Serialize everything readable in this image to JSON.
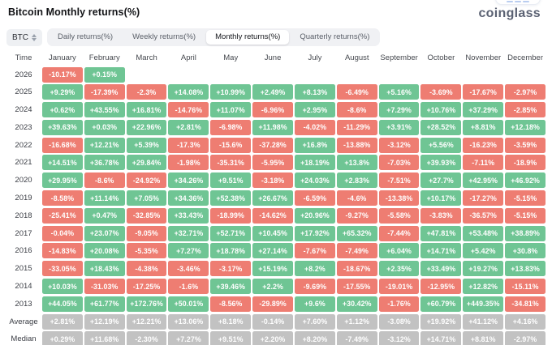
{
  "header": {
    "title": "Bitcoin Monthly returns(%)",
    "logo": "coinglass"
  },
  "toolbar": {
    "coin_selector": {
      "label": "BTC",
      "icon": "sort-caret-icon"
    },
    "tabs": [
      {
        "label": "Daily returns(%)",
        "selected": false
      },
      {
        "label": "Weekly returns(%)",
        "selected": false
      },
      {
        "label": "Monthly returns(%)",
        "selected": true
      },
      {
        "label": "Quarterly returns(%)",
        "selected": false
      }
    ]
  },
  "colors": {
    "positive": "#6fc594",
    "negative": "#ee7d72",
    "neutral": "#c2c2c2"
  },
  "chart_data": {
    "type": "heatmap",
    "title": "Bitcoin Monthly returns(%)",
    "row_header": "Time",
    "columns": [
      "January",
      "February",
      "March",
      "April",
      "May",
      "June",
      "July",
      "August",
      "September",
      "October",
      "November",
      "December"
    ],
    "rows": [
      {
        "label": "2026",
        "values": [
          "-10.17%",
          "+0.15%",
          "",
          "",
          "",
          "",
          "",
          "",
          "",
          "",
          "",
          ""
        ]
      },
      {
        "label": "2025",
        "values": [
          "+9.29%",
          "-17.39%",
          "-2.3%",
          "+14.08%",
          "+10.99%",
          "+2.49%",
          "+8.13%",
          "-6.49%",
          "+5.16%",
          "-3.69%",
          "-17.67%",
          "-2.97%"
        ]
      },
      {
        "label": "2024",
        "values": [
          "+0.62%",
          "+43.55%",
          "+16.81%",
          "-14.76%",
          "+11.07%",
          "-6.96%",
          "+2.95%",
          "-8.6%",
          "+7.29%",
          "+10.76%",
          "+37.29%",
          "-2.85%"
        ]
      },
      {
        "label": "2023",
        "values": [
          "+39.63%",
          "+0.03%",
          "+22.96%",
          "+2.81%",
          "-6.98%",
          "+11.98%",
          "-4.02%",
          "-11.29%",
          "+3.91%",
          "+28.52%",
          "+8.81%",
          "+12.18%"
        ]
      },
      {
        "label": "2022",
        "values": [
          "-16.68%",
          "+12.21%",
          "+5.39%",
          "-17.3%",
          "-15.6%",
          "-37.28%",
          "+16.8%",
          "-13.88%",
          "-3.12%",
          "+5.56%",
          "-16.23%",
          "-3.59%"
        ]
      },
      {
        "label": "2021",
        "values": [
          "+14.51%",
          "+36.78%",
          "+29.84%",
          "-1.98%",
          "-35.31%",
          "-5.95%",
          "+18.19%",
          "+13.8%",
          "-7.03%",
          "+39.93%",
          "-7.11%",
          "-18.9%"
        ]
      },
      {
        "label": "2020",
        "values": [
          "+29.95%",
          "-8.6%",
          "-24.92%",
          "+34.26%",
          "+9.51%",
          "-3.18%",
          "+24.03%",
          "+2.83%",
          "-7.51%",
          "+27.7%",
          "+42.95%",
          "+46.92%"
        ]
      },
      {
        "label": "2019",
        "values": [
          "-8.58%",
          "+11.14%",
          "+7.05%",
          "+34.36%",
          "+52.38%",
          "+26.67%",
          "-6.59%",
          "-4.6%",
          "-13.38%",
          "+10.17%",
          "-17.27%",
          "-5.15%"
        ]
      },
      {
        "label": "2018",
        "values": [
          "-25.41%",
          "+0.47%",
          "-32.85%",
          "+33.43%",
          "-18.99%",
          "-14.62%",
          "+20.96%",
          "-9.27%",
          "-5.58%",
          "-3.83%",
          "-36.57%",
          "-5.15%"
        ]
      },
      {
        "label": "2017",
        "values": [
          "-0.04%",
          "+23.07%",
          "-9.05%",
          "+32.71%",
          "+52.71%",
          "+10.45%",
          "+17.92%",
          "+65.32%",
          "-7.44%",
          "+47.81%",
          "+53.48%",
          "+38.89%"
        ]
      },
      {
        "label": "2016",
        "values": [
          "-14.83%",
          "+20.08%",
          "-5.35%",
          "+7.27%",
          "+18.78%",
          "+27.14%",
          "-7.67%",
          "-7.49%",
          "+6.04%",
          "+14.71%",
          "+5.42%",
          "+30.8%"
        ]
      },
      {
        "label": "2015",
        "values": [
          "-33.05%",
          "+18.43%",
          "-4.38%",
          "-3.46%",
          "-3.17%",
          "+15.19%",
          "+8.2%",
          "-18.67%",
          "+2.35%",
          "+33.49%",
          "+19.27%",
          "+13.83%"
        ]
      },
      {
        "label": "2014",
        "values": [
          "+10.03%",
          "-31.03%",
          "-17.25%",
          "-1.6%",
          "+39.46%",
          "+2.2%",
          "-9.69%",
          "-17.55%",
          "-19.01%",
          "-12.95%",
          "+12.82%",
          "-15.11%"
        ]
      },
      {
        "label": "2013",
        "values": [
          "+44.05%",
          "+61.77%",
          "+172.76%",
          "+50.01%",
          "-8.56%",
          "-29.89%",
          "+9.6%",
          "+30.42%",
          "-1.76%",
          "+60.79%",
          "+449.35%",
          "-34.81%"
        ]
      },
      {
        "label": "Average",
        "neutral": true,
        "values": [
          "+2.81%",
          "+12.19%",
          "+12.21%",
          "+13.06%",
          "+8.18%",
          "-0.14%",
          "+7.60%",
          "+1.12%",
          "-3.08%",
          "+19.92%",
          "+41.12%",
          "+4.16%"
        ]
      },
      {
        "label": "Median",
        "neutral": true,
        "values": [
          "+0.29%",
          "+11.68%",
          "-2.30%",
          "+7.27%",
          "+9.51%",
          "+2.20%",
          "+8.20%",
          "-7.49%",
          "-3.12%",
          "+14.71%",
          "+8.81%",
          "-2.97%"
        ]
      }
    ]
  }
}
